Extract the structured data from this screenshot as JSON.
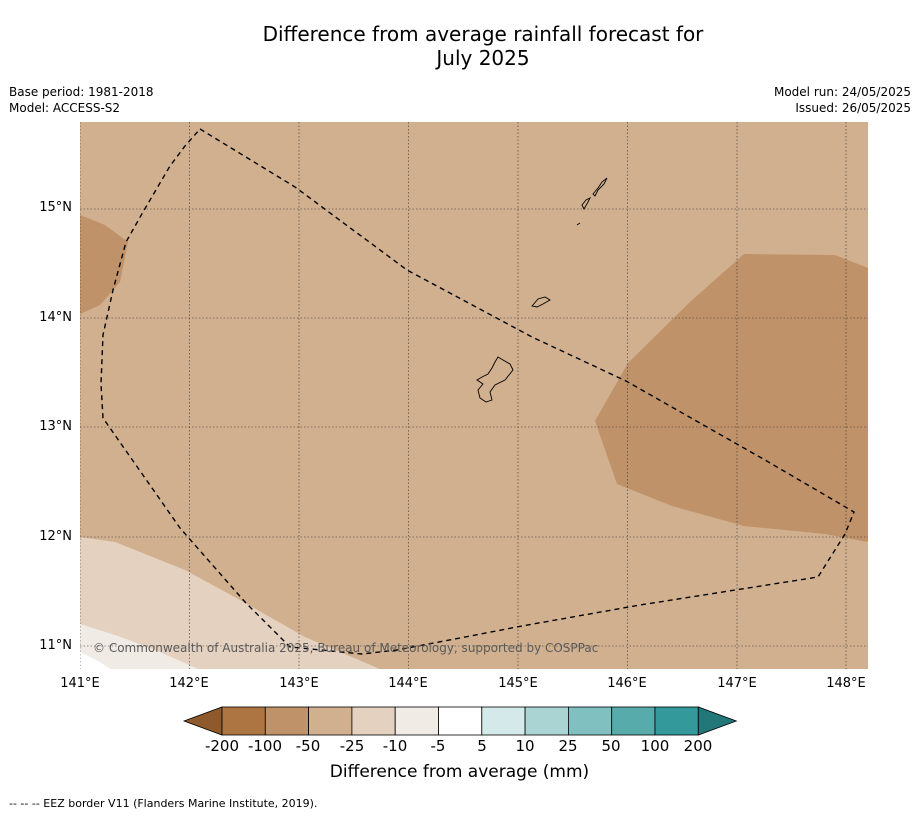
{
  "title_line1": "Difference from average rainfall forecast for",
  "title_line2": "July 2025",
  "base_period": "Base period: 1981-2018",
  "model": "Model: ACCESS-S2",
  "model_run": "Model run: 24/05/2025",
  "issued": "Issued: 26/05/2025",
  "lat_labels": [
    "15°N",
    "14°N",
    "13°N",
    "12°N",
    "11°N"
  ],
  "lon_labels": [
    "141°E",
    "142°E",
    "143°E",
    "144°E",
    "145°E",
    "146°E",
    "147°E",
    "148°E"
  ],
  "copyright": "© Commonwealth of Australia 2025, Bureau of Meteorology, supported by COSPPac",
  "colorbar": {
    "ticks": [
      "-200",
      "-100",
      "-50",
      "-25",
      "-10",
      "-5",
      "5",
      "10",
      "25",
      "50",
      "100",
      "200"
    ],
    "colors": [
      "#8e5a2b",
      "#ad7541",
      "#bf9269",
      "#d1b08f",
      "#e4d1bf",
      "#f1ebe6",
      "#ffffff",
      "#d4e9e9",
      "#aad3d3",
      "#80c0c0",
      "#58abab",
      "#33999a",
      "#227878"
    ],
    "label": "Difference from average (mm)"
  },
  "footer": "--  --  -- EEZ border V11 (Flanders Marine Institute, 2019)."
}
